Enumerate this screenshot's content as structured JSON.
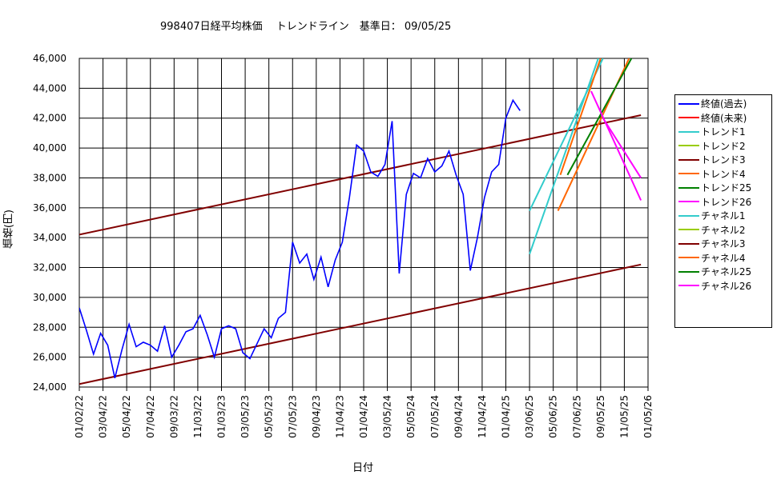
{
  "chart_data": {
    "type": "line",
    "title": "998407日経平均株価　 トレンドライン　基準日： 09/05/25",
    "xlabel": "日付",
    "ylabel": "価格(円)",
    "ylim": [
      24000,
      46000
    ],
    "yticks": [
      24000,
      26000,
      28000,
      30000,
      32000,
      34000,
      36000,
      38000,
      40000,
      42000,
      44000,
      46000
    ],
    "ytick_labels": [
      "24,000",
      "26,000",
      "28,000",
      "30,000",
      "32,000",
      "34,000",
      "36,000",
      "38,000",
      "40,000",
      "42,000",
      "44,000",
      "46,000"
    ],
    "xtick_labels": [
      "01/02/22",
      "03/04/22",
      "05/04/22",
      "07/04/22",
      "09/03/22",
      "11/03/22",
      "01/03/23",
      "03/05/23",
      "05/05/23",
      "07/05/23",
      "09/04/23",
      "11/04/23",
      "01/04/24",
      "03/05/24",
      "05/05/24",
      "07/05/24",
      "09/04/24",
      "11/04/24",
      "01/04/25",
      "03/06/25",
      "05/06/25",
      "07/06/25",
      "09/05/25",
      "11/05/25",
      "01/05/26"
    ],
    "grid": true,
    "legend_position": "right",
    "legend": [
      {
        "name": "終値(過去)",
        "color": "#0000ff"
      },
      {
        "name": "終値(未来)",
        "color": "#ff0000"
      },
      {
        "name": "トレンド1",
        "color": "#33cccc"
      },
      {
        "name": "トレンド2",
        "color": "#99cc00"
      },
      {
        "name": "トレンド3",
        "color": "#800000"
      },
      {
        "name": "トレンド4",
        "color": "#ff6600"
      },
      {
        "name": "トレンド25",
        "color": "#008000"
      },
      {
        "name": "トレンド26",
        "color": "#ff00ff"
      },
      {
        "name": "チャネル1",
        "color": "#33cccc"
      },
      {
        "name": "チャネル2",
        "color": "#99cc00"
      },
      {
        "name": "チャネル3",
        "color": "#800000"
      },
      {
        "name": "チャネル4",
        "color": "#ff6600"
      },
      {
        "name": "チャネル25",
        "color": "#008000"
      },
      {
        "name": "チャネル26",
        "color": "#ff00ff"
      }
    ],
    "close_past": {
      "name": "終値(過去)",
      "color": "#0000ff",
      "x": [
        0,
        0.3,
        0.6,
        0.9,
        1.2,
        1.5,
        1.8,
        2.1,
        2.4,
        2.7,
        3.0,
        3.3,
        3.6,
        3.9,
        4.2,
        4.5,
        4.8,
        5.1,
        5.4,
        5.7,
        6.0,
        6.3,
        6.6,
        6.9,
        7.2,
        7.5,
        7.8,
        8.1,
        8.4,
        8.7,
        9.0,
        9.3,
        9.6,
        9.9,
        10.2,
        10.5,
        10.8,
        11.1,
        11.4,
        11.7,
        12.0,
        12.3,
        12.6,
        12.9,
        13.2,
        13.5,
        13.8,
        14.1,
        14.4,
        14.7,
        15.0,
        15.3,
        15.6,
        15.9,
        16.2,
        16.5,
        16.8,
        17.1,
        17.4,
        17.7,
        18.0,
        18.3,
        18.6,
        18.9,
        19.2,
        19.5,
        19.8,
        20.1,
        20.4,
        20.7,
        21.1
      ],
      "y": [
        29300,
        27800,
        26200,
        27600,
        26800,
        24600,
        26500,
        28200,
        26700,
        27000,
        26800,
        26400,
        28100,
        26000,
        26800,
        27700,
        27900,
        28800,
        27500,
        26000,
        27900,
        28100,
        27900,
        26300,
        25900,
        26900,
        27900,
        27300,
        28600,
        29000,
        33700,
        32300,
        32900,
        31200,
        32700,
        30700,
        32500,
        33700,
        36700,
        40200,
        39800,
        38400,
        38100,
        38900,
        41800,
        31600,
        36900,
        38300,
        38000,
        39300,
        38400,
        38800,
        39800,
        38200,
        36900,
        31800,
        34000,
        36700,
        38400,
        38900,
        42000,
        43200,
        42500,
        null,
        null,
        null,
        null,
        null,
        null,
        null,
        null
      ]
    },
    "trend_lines": [
      {
        "name": "トレンド3",
        "color": "#800000",
        "x": [
          0,
          23.7
        ],
        "y": [
          34200,
          42200
        ]
      },
      {
        "name": "チャネル3",
        "color": "#800000",
        "x": [
          0,
          23.7
        ],
        "y": [
          24200,
          32200
        ]
      },
      {
        "name": "トレンド1",
        "color": "#33cccc",
        "x": [
          19.0,
          22.1
        ],
        "y": [
          35800,
          46000
        ]
      },
      {
        "name": "チャネル1",
        "color": "#33cccc",
        "x": [
          19.0,
          21.9
        ],
        "y": [
          32900,
          46000
        ]
      },
      {
        "name": "トレンド4",
        "color": "#ff6600",
        "x": [
          20.2,
          23.2
        ],
        "y": [
          35800,
          46000
        ]
      },
      {
        "name": "チャネル4",
        "color": "#ff6600",
        "x": [
          20.3,
          22.0
        ],
        "y": [
          38200,
          46000
        ]
      },
      {
        "name": "トレンド25",
        "color": "#008000",
        "x": [
          20.6,
          23.3
        ],
        "y": [
          38200,
          46000
        ]
      },
      {
        "name": "トレンド26",
        "color": "#ff00ff",
        "x": [
          21.6,
          23.7
        ],
        "y": [
          43800,
          36500
        ]
      },
      {
        "name": "チャネル26",
        "color": "#ff00ff",
        "x": [
          22.1,
          23.7
        ],
        "y": [
          42000,
          38000
        ]
      }
    ]
  }
}
